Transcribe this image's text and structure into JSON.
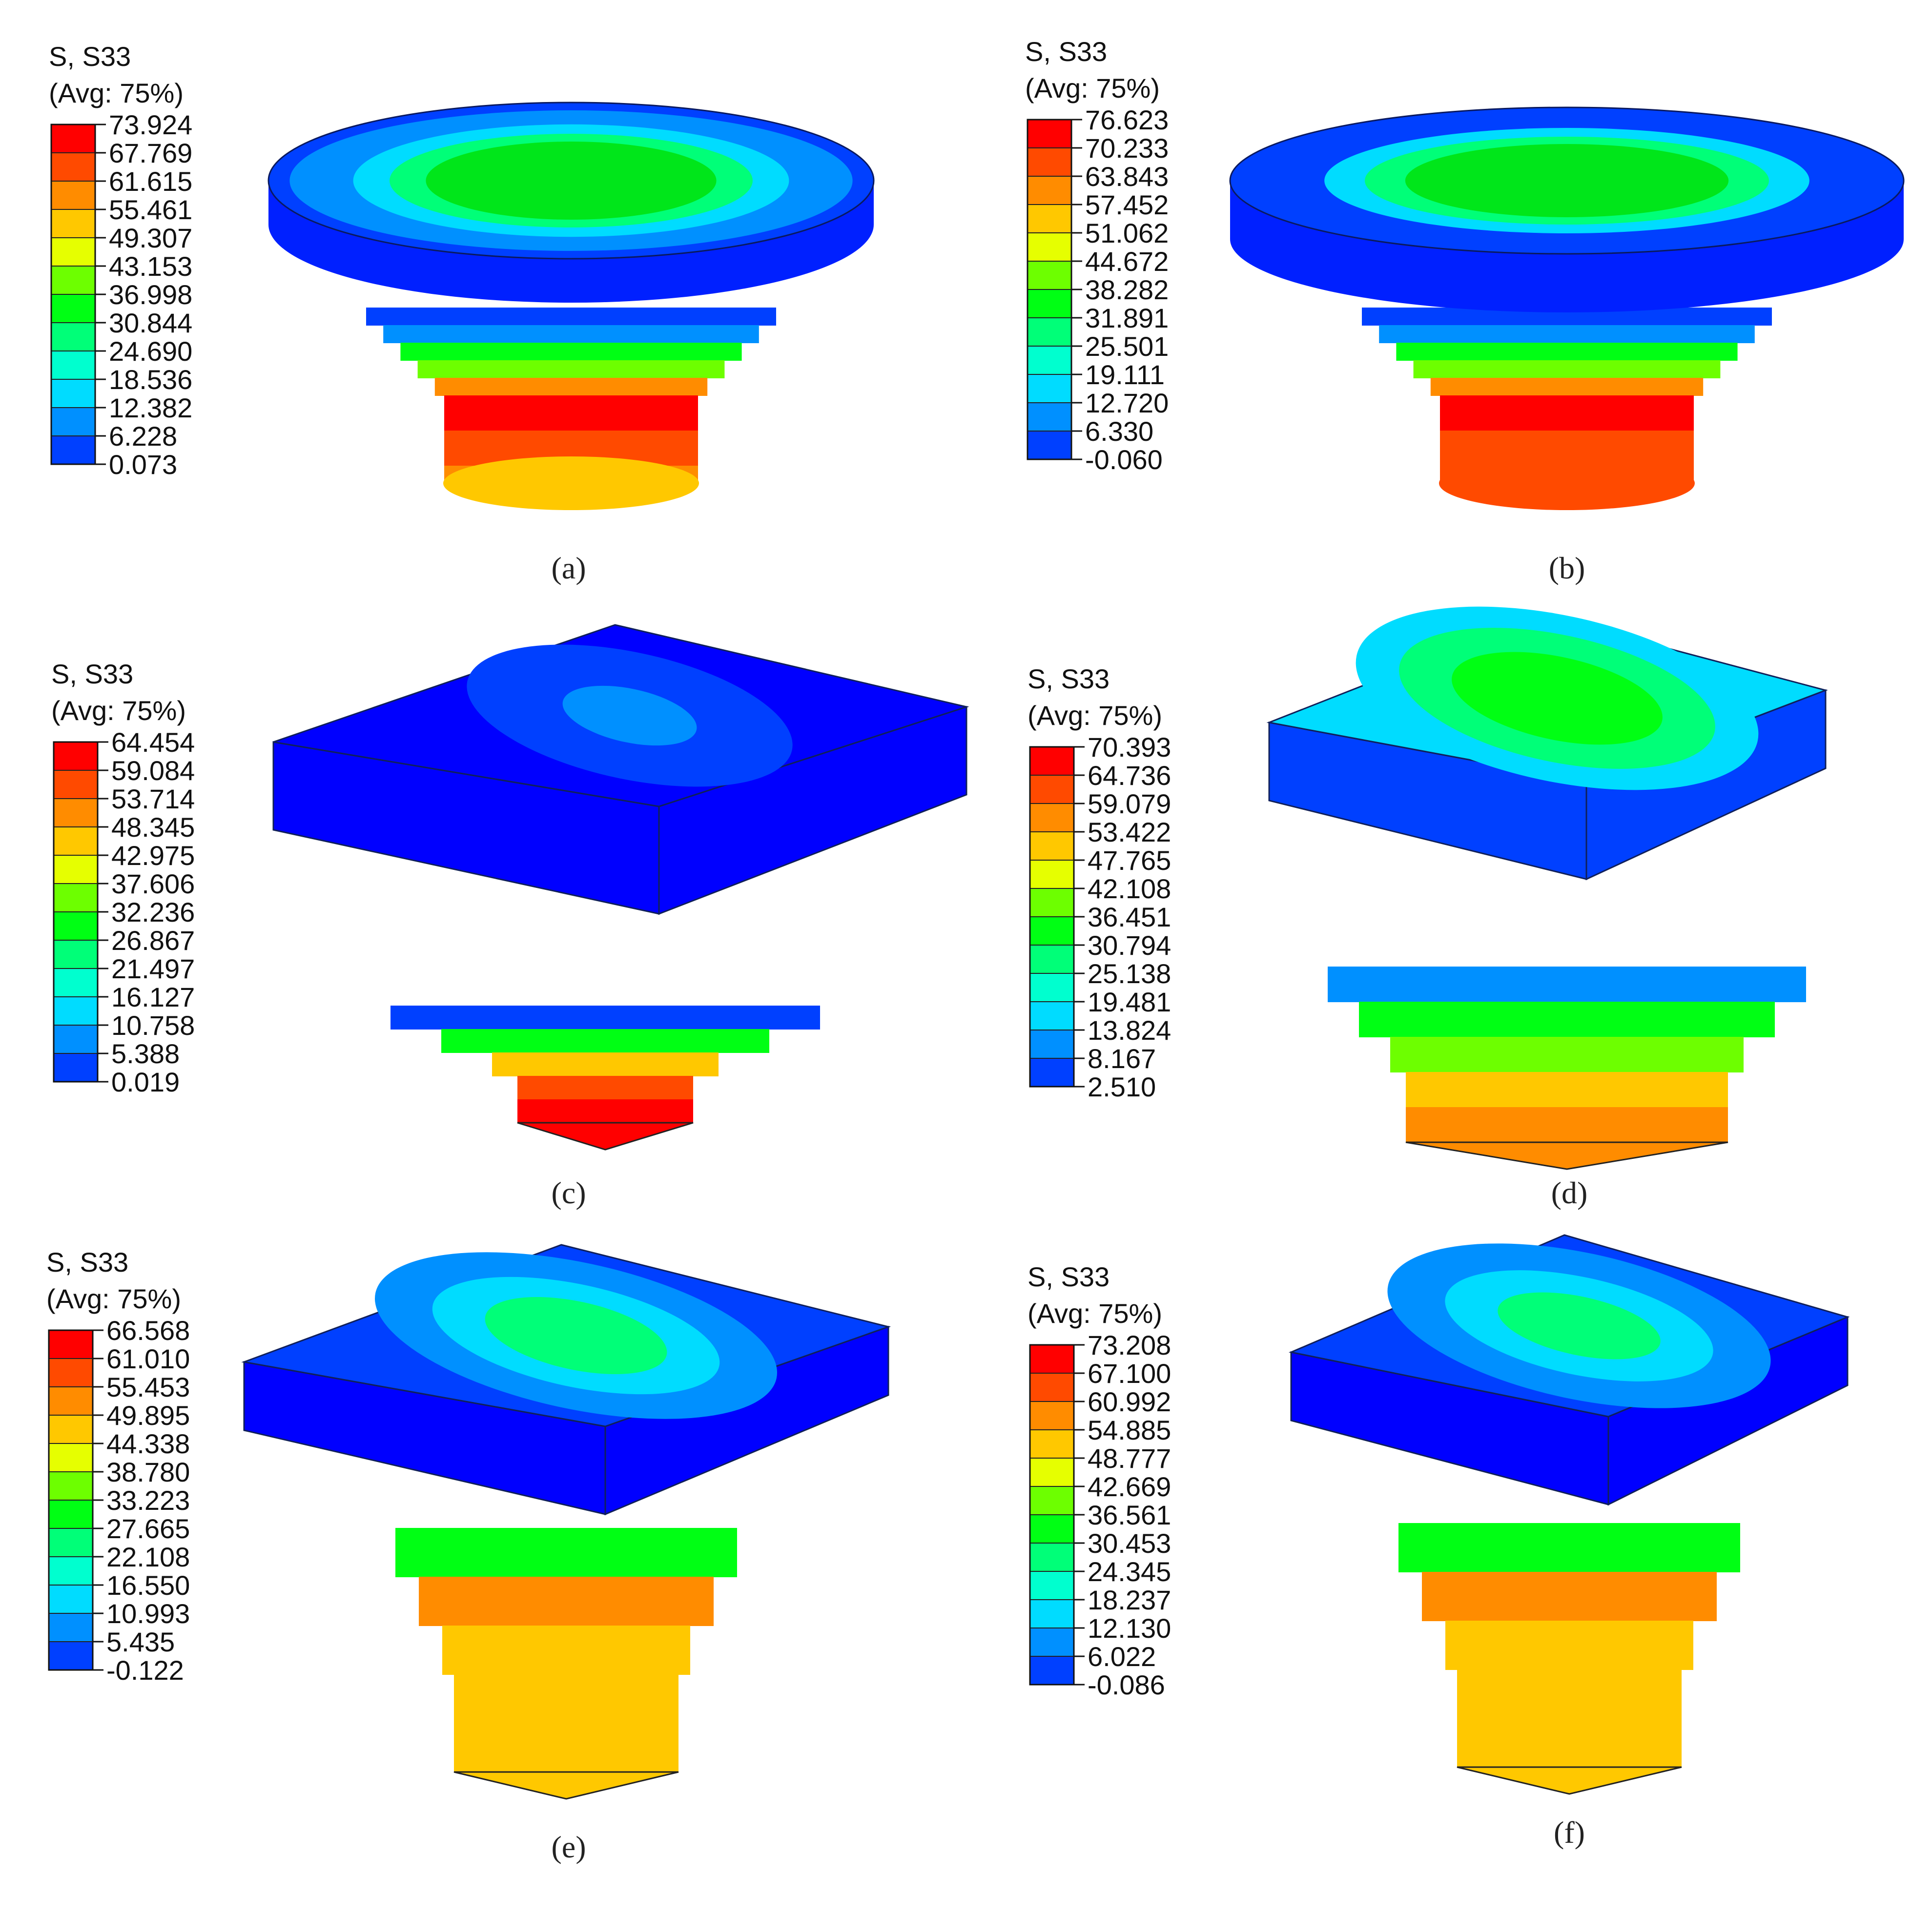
{
  "palette": [
    "#ff0000",
    "#ff4a00",
    "#ff8c00",
    "#ffc800",
    "#e6ff00",
    "#6dff00",
    "#00ff14",
    "#00ff78",
    "#00ffcf",
    "#00dcff",
    "#0090ff",
    "#0040ff",
    "#0000ff"
  ],
  "panels": [
    {
      "id": "a",
      "caption": "(a)",
      "shape": "round",
      "legend": {
        "title1": "S, S33",
        "title2": "(Avg: 75%)",
        "ticks": [
          "73.924",
          "67.769",
          "61.615",
          "55.461",
          "49.307",
          "43.153",
          "36.998",
          "30.844",
          "24.690",
          "18.536",
          "12.382",
          "6.228",
          "0.073"
        ]
      }
    },
    {
      "id": "b",
      "caption": "(b)",
      "shape": "round",
      "legend": {
        "title1": "S, S33",
        "title2": "(Avg: 75%)",
        "ticks": [
          "76.623",
          "70.233",
          "63.843",
          "57.452",
          "51.062",
          "44.672",
          "38.282",
          "31.891",
          "25.501",
          "19.111",
          "12.720",
          "6.330",
          "-0.060"
        ]
      }
    },
    {
      "id": "c",
      "caption": "(c)",
      "shape": "square",
      "legend": {
        "title1": "S, S33",
        "title2": "(Avg: 75%)",
        "ticks": [
          "64.454",
          "59.084",
          "53.714",
          "48.345",
          "42.975",
          "37.606",
          "32.236",
          "26.867",
          "21.497",
          "16.127",
          "10.758",
          "5.388",
          "0.019"
        ]
      }
    },
    {
      "id": "d",
      "caption": "(d)",
      "shape": "square",
      "legend": {
        "title1": "S, S33",
        "title2": "(Avg: 75%)",
        "ticks": [
          "70.393",
          "64.736",
          "59.079",
          "53.422",
          "47.765",
          "42.108",
          "36.451",
          "30.794",
          "25.138",
          "19.481",
          "13.824",
          "8.167",
          "2.510"
        ]
      }
    },
    {
      "id": "e",
      "caption": "(e)",
      "shape": "square",
      "legend": {
        "title1": "S, S33",
        "title2": "(Avg: 75%)",
        "ticks": [
          "66.568",
          "61.010",
          "55.453",
          "49.895",
          "44.338",
          "38.780",
          "33.223",
          "27.665",
          "22.108",
          "16.550",
          "10.993",
          "5.435",
          "-0.122"
        ]
      }
    },
    {
      "id": "f",
      "caption": "(f)",
      "shape": "square",
      "legend": {
        "title1": "S, S33",
        "title2": "(Avg: 75%)",
        "ticks": [
          "73.208",
          "67.100",
          "60.992",
          "54.885",
          "48.777",
          "42.669",
          "36.561",
          "30.453",
          "24.345",
          "18.237",
          "12.130",
          "6.022",
          "-0.086"
        ]
      }
    }
  ]
}
